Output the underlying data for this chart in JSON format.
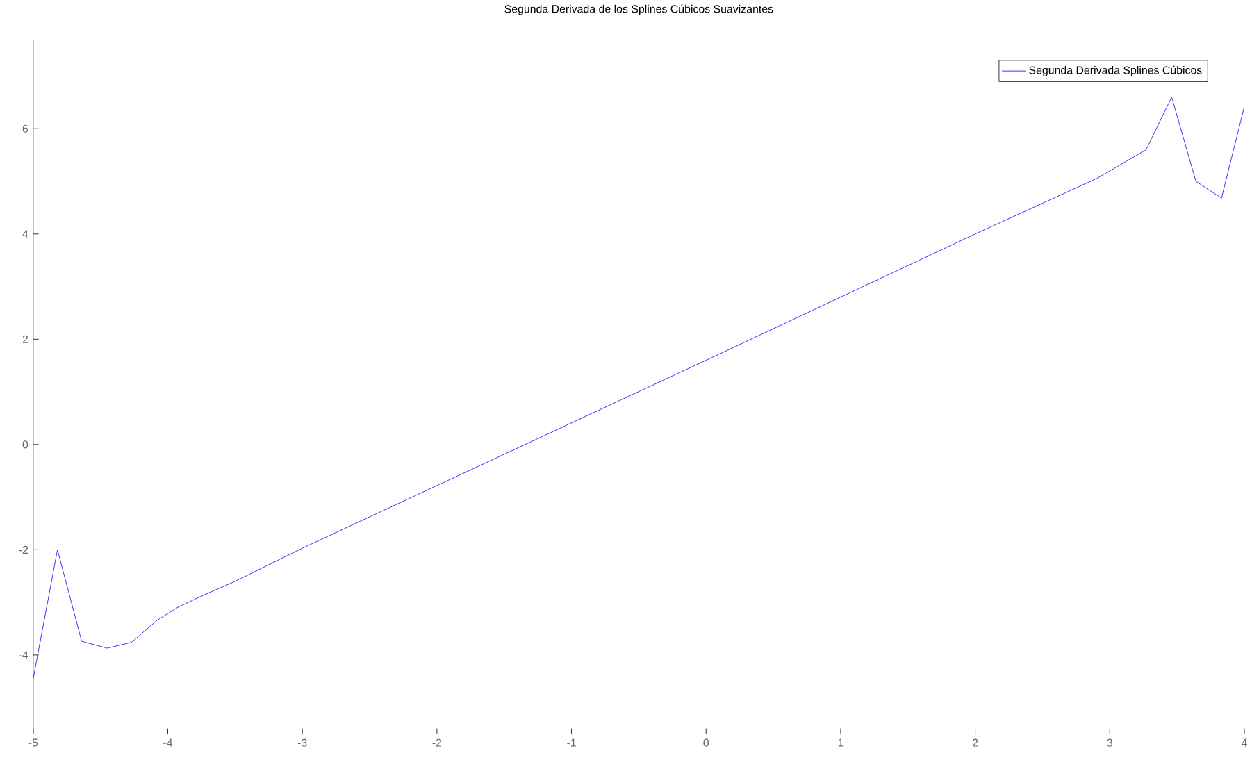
{
  "chart_data": {
    "type": "line",
    "title": "Segunda Derivada de los Splines Cúbicos Suavizantes",
    "x": [
      -5,
      -4.82,
      -4.64,
      -4.45,
      -4.27,
      -4.08,
      -3.93,
      -3.75,
      -3.5,
      -3,
      -2,
      -1,
      0,
      1,
      2,
      2.9,
      3.27,
      3.46,
      3.64,
      3.83,
      4
    ],
    "series": [
      {
        "name": "Segunda Derivada Splines Cúbicos",
        "color": "#0000ff",
        "values": [
          -4.45,
          -2.0,
          -3.74,
          -3.87,
          -3.76,
          -3.34,
          -3.1,
          -2.88,
          -2.6,
          -1.97,
          -0.78,
          0.41,
          1.6,
          2.8,
          4.0,
          5.05,
          5.6,
          6.6,
          5.0,
          4.68,
          6.42
        ]
      }
    ],
    "xlim": [
      -5,
      4
    ],
    "ylim": [
      -5.5,
      7.7
    ],
    "xticks": [
      -5,
      -4,
      -3,
      -2,
      -1,
      0,
      1,
      2,
      3,
      4
    ],
    "yticks": [
      -4,
      -2,
      0,
      2,
      4,
      6
    ],
    "legend": "top right",
    "line_style": "solid"
  }
}
